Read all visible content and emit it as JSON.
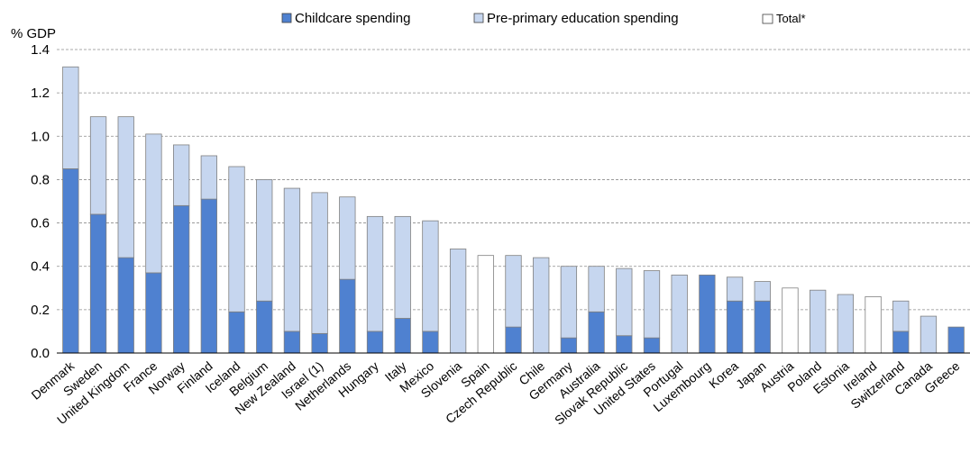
{
  "chart_data": {
    "type": "bar",
    "stacked": true,
    "ylabel": "% GDP",
    "ylim": [
      0,
      1.4
    ],
    "yticks": [
      "0.0",
      "0.2",
      "0.4",
      "0.6",
      "0.8",
      "1.0",
      "1.2",
      "1.4"
    ],
    "grid": "horizontal dashed",
    "legend_position": "top",
    "legend": {
      "childcare": "Childcare spending",
      "preprimary": "Pre-primary education spending",
      "total": "Total*"
    },
    "colors": {
      "childcare": "#4f81d0",
      "preprimary": "#c6d6ef",
      "total": "#ffffff",
      "outline": "#808080",
      "grid": "#8c8c8c"
    },
    "categories": [
      "Denmark",
      "Sweden",
      "United Kingdom",
      "France",
      "Norway",
      "Finland",
      "Iceland",
      "Belgium",
      "New Zealand",
      "Israel (1)",
      "Netherlands",
      "Hungary",
      "Italy",
      "Mexico",
      "Slovenia",
      "Spain",
      "Czech Republic",
      "Chile",
      "Germany",
      "Australia",
      "Slovak Republic",
      "United States",
      "Portugal",
      "Luxembourg",
      "Korea",
      "Japan",
      "Austria",
      "Poland",
      "Estonia",
      "Ireland",
      "Switzerland",
      "Canada",
      "Greece"
    ],
    "series": [
      {
        "name": "Childcare spending",
        "key": "childcare",
        "values": [
          0.85,
          0.64,
          0.44,
          0.37,
          0.68,
          0.71,
          0.19,
          0.24,
          0.1,
          0.09,
          0.34,
          0.1,
          0.16,
          0.1,
          0,
          null,
          0.12,
          0,
          0.07,
          0.19,
          0.08,
          0.07,
          0,
          0.36,
          0.24,
          0.24,
          null,
          0,
          0,
          null,
          0.1,
          0,
          0.12
        ]
      },
      {
        "name": "Pre-primary education spending",
        "key": "preprimary",
        "values": [
          0.47,
          0.45,
          0.65,
          0.64,
          0.28,
          0.2,
          0.67,
          0.56,
          0.66,
          0.65,
          0.38,
          0.53,
          0.47,
          0.51,
          0.48,
          null,
          0.33,
          0.44,
          0.33,
          0.21,
          0.31,
          0.31,
          0.36,
          0,
          0.11,
          0.09,
          null,
          0.29,
          0.27,
          null,
          0.14,
          0.17,
          0
        ]
      },
      {
        "name": "Total*",
        "key": "total",
        "values": [
          null,
          null,
          null,
          null,
          null,
          null,
          null,
          null,
          null,
          null,
          null,
          null,
          null,
          null,
          null,
          0.45,
          null,
          null,
          null,
          null,
          null,
          null,
          null,
          null,
          null,
          null,
          0.3,
          null,
          null,
          0.26,
          null,
          null,
          null
        ]
      }
    ]
  }
}
